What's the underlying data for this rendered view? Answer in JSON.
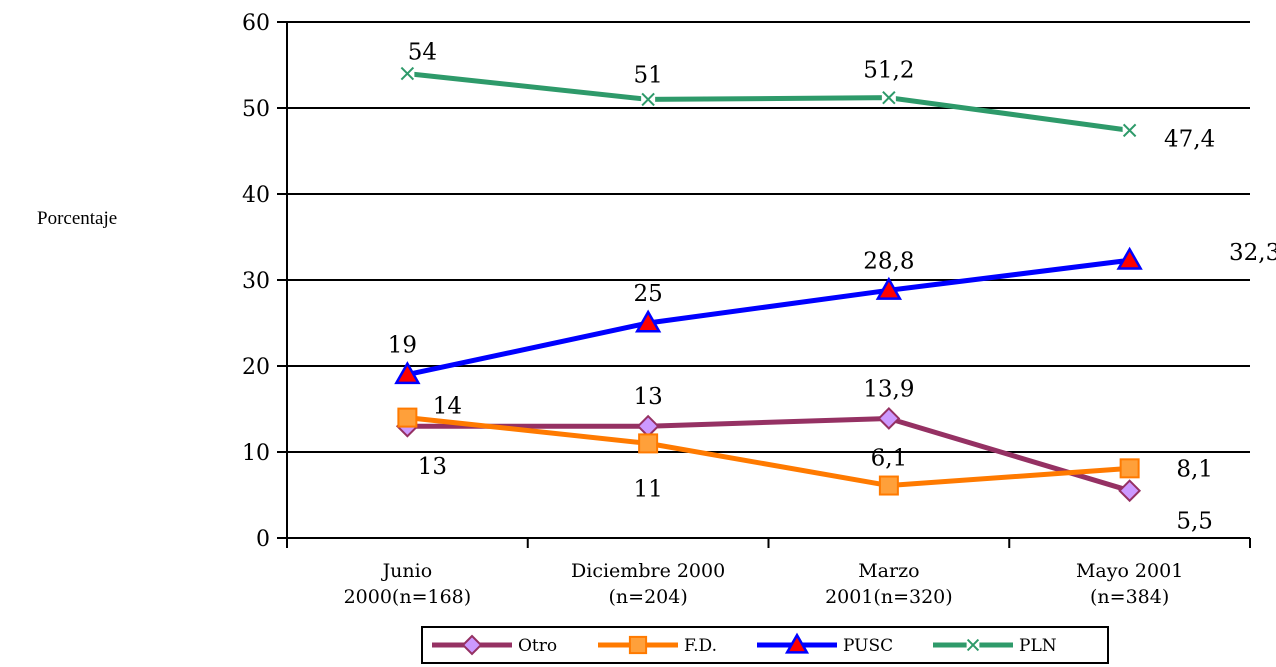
{
  "chart_data": {
    "type": "line",
    "ylabel": "Porcentaje",
    "xlabel": "",
    "ylim": [
      0,
      60
    ],
    "yticks": [
      0,
      10,
      20,
      30,
      40,
      50,
      60
    ],
    "grid": "horizontal",
    "legend": "bottom",
    "categories": [
      [
        "Junio",
        "2000(n=168)"
      ],
      [
        "Diciembre 2000",
        "(n=204)"
      ],
      [
        "Marzo",
        "2001(n=320)"
      ],
      [
        "Mayo 2001",
        "(n=384)"
      ]
    ],
    "series": [
      {
        "name": "Otro",
        "color": "#953163",
        "marker": "diamond",
        "marker_fill": "#cc99ff",
        "values": [
          13,
          13,
          13.9,
          5.5
        ],
        "labels": [
          "13",
          "13",
          "13,9",
          "5,5"
        ]
      },
      {
        "name": "F.D.",
        "color": "#ff7a00",
        "marker": "square",
        "marker_fill": "#ffa03a",
        "values": [
          14,
          11,
          6.1,
          8.1
        ],
        "labels": [
          "14",
          "11",
          "6,1",
          "8,1"
        ]
      },
      {
        "name": "PUSC",
        "color": "#0000ff",
        "marker": "triangle",
        "marker_fill": "#ff0000",
        "values": [
          19,
          25,
          28.8,
          32.3
        ],
        "labels": [
          "19",
          "25",
          "28,8",
          "32,3"
        ]
      },
      {
        "name": "PLN",
        "color": "#2e9a6a",
        "marker": "x",
        "marker_fill": "#ffffff",
        "values": [
          54,
          51,
          51.2,
          47.4
        ],
        "labels": [
          "54",
          "51",
          "51,2",
          "47,4"
        ]
      }
    ]
  }
}
